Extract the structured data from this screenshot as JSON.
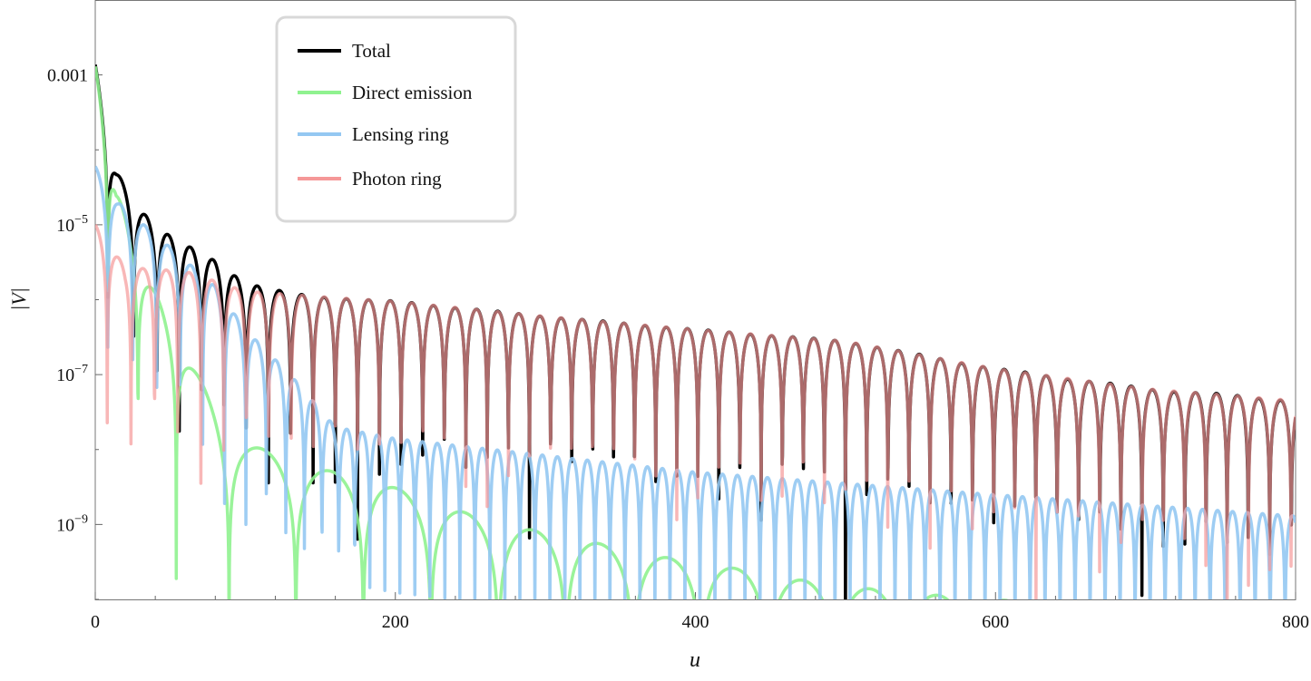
{
  "chart_data": {
    "type": "line",
    "title": "",
    "xlabel": "u",
    "ylabel": "|V|",
    "xlim": [
      0,
      800
    ],
    "ylim": [
      1e-10,
      0.01
    ],
    "yscale": "log",
    "grid": false,
    "legend_placement": "top-left",
    "x_ticks": [
      {
        "value": 0,
        "label": "0"
      },
      {
        "value": 200,
        "label": "200"
      },
      {
        "value": 400,
        "label": "400"
      },
      {
        "value": 600,
        "label": "600"
      },
      {
        "value": 800,
        "label": "800"
      }
    ],
    "y_ticks": [
      {
        "value": 0.001,
        "label": "0.001",
        "base": "",
        "exp": ""
      },
      {
        "value": 1e-05,
        "label": "10^-5",
        "base": "10",
        "exp": "−5"
      },
      {
        "value": 1e-07,
        "label": "10^-7",
        "base": "10",
        "exp": "−7"
      },
      {
        "value": 1e-09,
        "label": "10^-9",
        "base": "10",
        "exp": "−9"
      }
    ],
    "series": [
      {
        "name": "Total",
        "color": "#000000",
        "combined_from": [
          "Direct emission",
          "Lensing ring",
          "Photon ring"
        ]
      },
      {
        "name": "Direct emission",
        "color": "#8ff28f",
        "lobe_peaks": [
          [
            0,
            0.0013
          ],
          [
            14,
            3e-05
          ],
          [
            30,
            3e-06
          ],
          [
            60,
            2e-07
          ],
          [
            90,
            1.5e-08
          ],
          [
            140,
            6e-09
          ],
          [
            185,
            4e-09
          ],
          [
            225,
            2e-09
          ],
          [
            270,
            1e-09
          ],
          [
            315,
            7e-10
          ],
          [
            365,
            4e-10
          ],
          [
            410,
            3e-10
          ],
          [
            455,
            2e-10
          ],
          [
            500,
            1.5e-10
          ],
          [
            545,
            1.2e-10
          ],
          [
            800,
            5e-11
          ]
        ],
        "lobe_width": [
          [
            0,
            16
          ],
          [
            40,
            25
          ],
          [
            100,
            45
          ],
          [
            800,
            45
          ]
        ]
      },
      {
        "name": "Lensing ring",
        "color": "#94c8f2",
        "lobe_peaks": [
          [
            0,
            6e-05
          ],
          [
            15,
            2e-05
          ],
          [
            50,
            5e-06
          ],
          [
            80,
            1.5e-06
          ],
          [
            100,
            4e-07
          ],
          [
            130,
            1e-07
          ],
          [
            160,
            2e-08
          ],
          [
            200,
            1.4e-08
          ],
          [
            400,
            5e-09
          ],
          [
            600,
            2.5e-09
          ],
          [
            800,
            1.3e-09
          ]
        ],
        "lobe_width": [
          [
            0,
            17
          ],
          [
            100,
            14
          ],
          [
            180,
            10
          ],
          [
            800,
            10
          ]
        ]
      },
      {
        "name": "Photon ring",
        "color": "#f59898",
        "lobe_peaks": [
          [
            0,
            1e-05
          ],
          [
            20,
            2.7e-06
          ],
          [
            60,
            2.4e-06
          ],
          [
            100,
            1.3e-06
          ],
          [
            150,
            1.1e-06
          ],
          [
            200,
            9.5e-07
          ],
          [
            300,
            6e-07
          ],
          [
            400,
            4e-07
          ],
          [
            500,
            2.8e-07
          ],
          [
            600,
            1.2e-07
          ],
          [
            700,
            6.5e-08
          ],
          [
            800,
            4.5e-08
          ]
        ],
        "lobe_width": [
          [
            0,
            16
          ],
          [
            100,
            15
          ],
          [
            300,
            14
          ],
          [
            800,
            14.2
          ]
        ]
      }
    ]
  }
}
